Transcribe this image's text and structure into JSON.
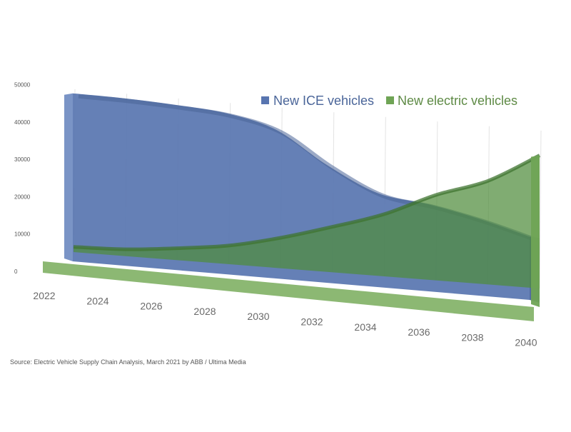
{
  "chart_data": {
    "type": "area",
    "title": "",
    "xlabel": "",
    "ylabel": "",
    "x": [
      2022,
      2024,
      2026,
      2028,
      2030,
      2032,
      2034,
      2036,
      2038,
      2040
    ],
    "x_tick_labels": [
      "2022",
      "2024",
      "2026",
      "2028",
      "2030",
      "2032",
      "2034",
      "2036",
      "2038",
      "2040"
    ],
    "y_tick_labels": [
      "0",
      "10000",
      "20000",
      "30000",
      "40000",
      "50000"
    ],
    "ylim": [
      0,
      50000
    ],
    "grid": "vertical",
    "legend_position": "top-right",
    "style": "3d",
    "series": [
      {
        "name": "New ICE vehicles",
        "color": "#5875b0",
        "values": [
          49000,
          49000,
          48500,
          47500,
          44000,
          35000,
          28000,
          26000,
          23000,
          19000
        ]
      },
      {
        "name": "New electric vehicles",
        "color": "#6fa455",
        "values": [
          1500,
          2000,
          3500,
          5500,
          9000,
          13500,
          18500,
          25500,
          31000,
          40000
        ]
      }
    ]
  },
  "source_text": "Source: Electric Vehicle Supply Chain Analysis, March 2021 by ABB / Ultima Media"
}
